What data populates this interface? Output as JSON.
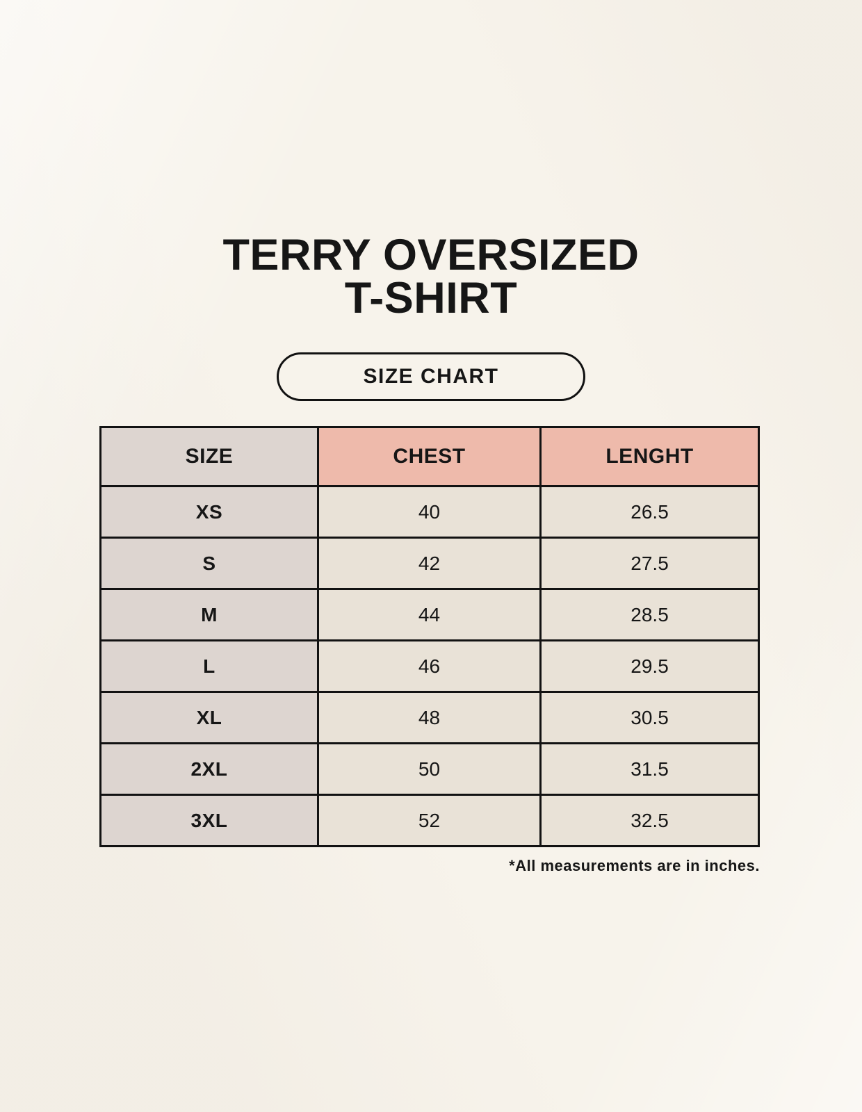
{
  "page": {
    "title_line1": "TERRY OVERSIZED",
    "title_line2": "T-SHIRT",
    "badge_label": "SIZE CHART",
    "footnote": "*All measurements are in inches."
  },
  "colors": {
    "background": "#f7f3eb",
    "header_size_bg": "#ddd5d0",
    "header_measure_bg": "#eebaab",
    "size_col_bg": "#ddd5d0",
    "cell_bg": "#e9e2d7",
    "border": "#121212",
    "text": "#161616"
  },
  "chart_data": {
    "type": "table",
    "title": "TERRY OVERSIZED T-SHIRT",
    "subtitle": "SIZE CHART",
    "columns": [
      "SIZE",
      "CHEST",
      "LENGHT"
    ],
    "rows": [
      [
        "XS",
        "40",
        "26.5"
      ],
      [
        "S",
        "42",
        "27.5"
      ],
      [
        "M",
        "44",
        "28.5"
      ],
      [
        "L",
        "46",
        "29.5"
      ],
      [
        "XL",
        "48",
        "30.5"
      ],
      [
        "2XL",
        "50",
        "31.5"
      ],
      [
        "3XL",
        "52",
        "32.5"
      ]
    ],
    "note": "*All measurements are in inches.",
    "units": "inches"
  }
}
